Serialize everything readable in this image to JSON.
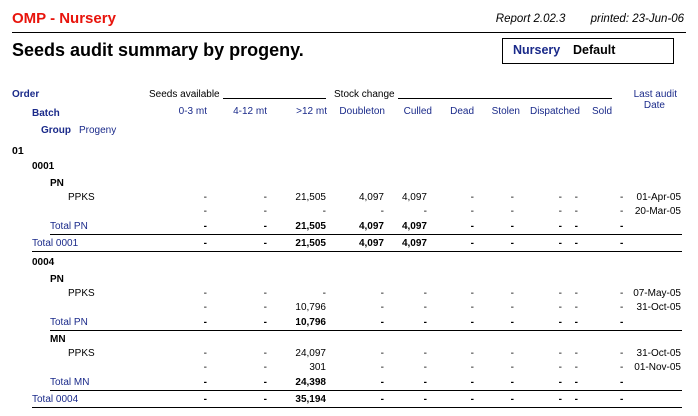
{
  "header": {
    "app_title": "OMP - Nursery",
    "report_no": "Report 2.02.3",
    "printed": "printed: 23-Jun-06",
    "page_title": "Seeds audit summary by progeny.",
    "nursery_label": "Nursery",
    "nursery_value": "Default"
  },
  "columns": {
    "order": "Order",
    "batch": "Batch",
    "group": "Group",
    "progeny": "Progeny",
    "seeds_available": "Seeds available",
    "stock_change": "Stock change",
    "last_audit": "Last audit",
    "date": "Date",
    "m0_3": "0-3 mt",
    "m4_12": "4-12 mt",
    "m12p": ">12 mt",
    "doubleton": "Doubleton",
    "culled": "Culled",
    "dead": "Dead",
    "stolen": "Stolen",
    "dispatched": "Dispatched",
    "sold": "Sold"
  },
  "order": {
    "label": "01"
  },
  "batches": [
    {
      "label": "0001",
      "groups": [
        {
          "label": "PN",
          "rows": [
            {
              "progeny": "PPKS",
              "m0_3": "-",
              "m4_12": "-",
              "m12p": "21,505",
              "doubleton": "4,097",
              "culled": "4,097",
              "dead": "-",
              "stolen": "-",
              "dispatched": "-",
              "sold": "-",
              "date": "01-Apr-05"
            },
            {
              "progeny": "",
              "m0_3": "-",
              "m4_12": "-",
              "m12p": "-",
              "doubleton": "-",
              "culled": "-",
              "dead": "-",
              "stolen": "-",
              "dispatched": "-",
              "sold": "-",
              "date": "20-Mar-05"
            }
          ],
          "total": {
            "label": "Total PN",
            "m0_3": "-",
            "m4_12": "-",
            "m12p": "21,505",
            "doubleton": "4,097",
            "culled": "4,097",
            "dead": "-",
            "stolen": "-",
            "dispatched": "-",
            "sold": "-",
            "date": ""
          }
        }
      ],
      "total": {
        "label": "Total 0001",
        "m0_3": "-",
        "m4_12": "-",
        "m12p": "21,505",
        "doubleton": "4,097",
        "culled": "4,097",
        "dead": "-",
        "stolen": "-",
        "dispatched": "-",
        "sold": "-",
        "date": ""
      }
    },
    {
      "label": "0004",
      "groups": [
        {
          "label": "PN",
          "rows": [
            {
              "progeny": "PPKS",
              "m0_3": "-",
              "m4_12": "-",
              "m12p": "-",
              "doubleton": "-",
              "culled": "-",
              "dead": "-",
              "stolen": "-",
              "dispatched": "-",
              "sold": "-",
              "date": "07-May-05"
            },
            {
              "progeny": "",
              "m0_3": "-",
              "m4_12": "-",
              "m12p": "10,796",
              "doubleton": "-",
              "culled": "-",
              "dead": "-",
              "stolen": "-",
              "dispatched": "-",
              "sold": "-",
              "date": "31-Oct-05"
            }
          ],
          "total": {
            "label": "Total PN",
            "m0_3": "-",
            "m4_12": "-",
            "m12p": "10,796",
            "doubleton": "-",
            "culled": "-",
            "dead": "-",
            "stolen": "-",
            "dispatched": "-",
            "sold": "-",
            "date": ""
          }
        },
        {
          "label": "MN",
          "rows": [
            {
              "progeny": "PPKS",
              "m0_3": "-",
              "m4_12": "-",
              "m12p": "24,097",
              "doubleton": "-",
              "culled": "-",
              "dead": "-",
              "stolen": "-",
              "dispatched": "-",
              "sold": "-",
              "date": "31-Oct-05"
            },
            {
              "progeny": "",
              "m0_3": "-",
              "m4_12": "-",
              "m12p": "301",
              "doubleton": "-",
              "culled": "-",
              "dead": "-",
              "stolen": "-",
              "dispatched": "-",
              "sold": "-",
              "date": "01-Nov-05"
            }
          ],
          "total": {
            "label": "Total MN",
            "m0_3": "-",
            "m4_12": "-",
            "m12p": "24,398",
            "doubleton": "-",
            "culled": "-",
            "dead": "-",
            "stolen": "-",
            "dispatched": "-",
            "sold": "-",
            "date": ""
          }
        }
      ],
      "total": {
        "label": "Total 0004",
        "m0_3": "-",
        "m4_12": "-",
        "m12p": "35,194",
        "doubleton": "-",
        "culled": "-",
        "dead": "-",
        "stolen": "-",
        "dispatched": "-",
        "sold": "-",
        "date": ""
      }
    }
  ]
}
